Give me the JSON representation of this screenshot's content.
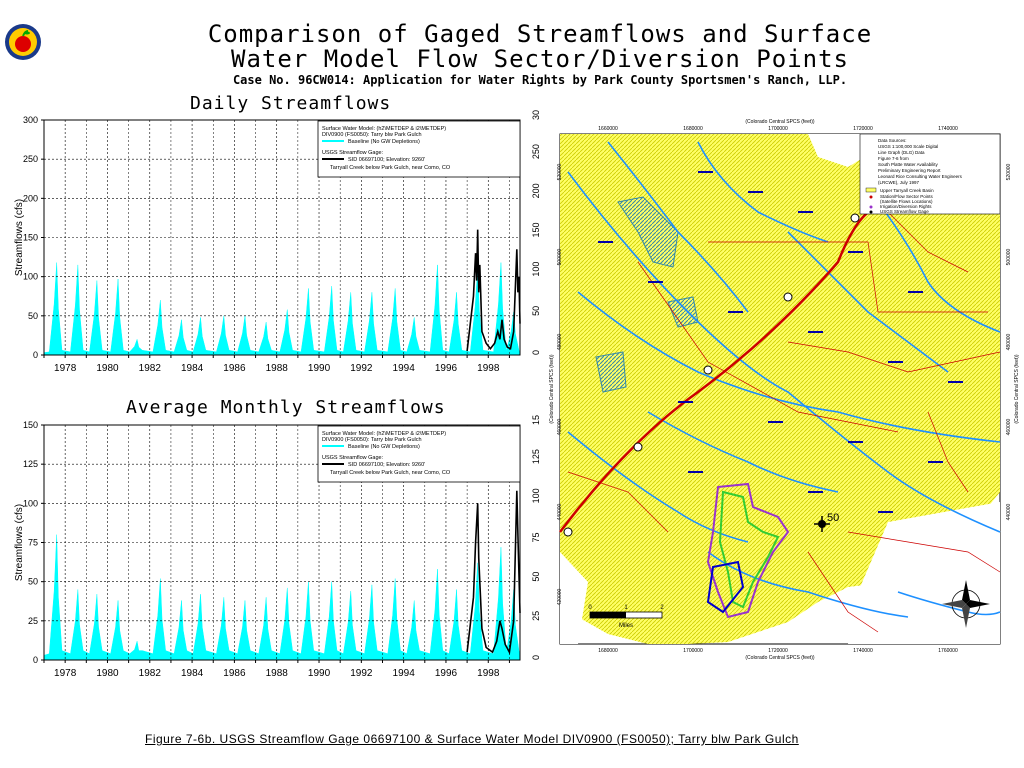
{
  "header": {
    "title_line1": "Comparison of Gaged Streamflows and Surface",
    "title_line2": "Water Model Flow Sector/Diversion Points",
    "subtitle": "Case No. 96CW014: Application for Water Rights by Park County Sportsmen's Ranch, LLP."
  },
  "colors": {
    "model": "#00ffff",
    "gage": "#000000",
    "map_yellow": "#ffff66",
    "river": "#1e90ff",
    "road": "#cc0000"
  },
  "chart_data": [
    {
      "type": "area",
      "title": "Daily Streamflows",
      "ylabel": "Streamflows (cfs)",
      "xlabel": "",
      "ylim": [
        0,
        300
      ],
      "xlim": [
        1977,
        1999.5
      ],
      "yticks": [
        0,
        50,
        100,
        150,
        200,
        250,
        300
      ],
      "xticks": [
        "1978",
        "1980",
        "1982",
        "1984",
        "1986",
        "1988",
        "1990",
        "1992",
        "1994",
        "1996",
        "1998"
      ],
      "grid": true,
      "legend_position": "top-right",
      "legend": {
        "line1": "Surface Water Model: (h2\\METDEP & i2\\METDEP)",
        "line2": "DIV0900 (FS0050): Tarry blw Park Gulch",
        "series1": "Baseline (No GW Depletions)",
        "line3": "USGS Streamflow Gage:",
        "line4": "SID 06697100; Elevation: 9260'",
        "line5": "Tarryall Creek below Park Gulch, near Como, CO"
      },
      "series": [
        {
          "name": "Baseline (No GW Depletions)",
          "style": "area",
          "peaks": [
            [
              1977.6,
              118
            ],
            [
              1978.6,
              115
            ],
            [
              1979.5,
              95
            ],
            [
              1980.5,
              97
            ],
            [
              1981.4,
              20
            ],
            [
              1982.5,
              70
            ],
            [
              1983.5,
              45
            ],
            [
              1984.4,
              48
            ],
            [
              1985.5,
              50
            ],
            [
              1986.5,
              50
            ],
            [
              1987.5,
              42
            ],
            [
              1988.5,
              58
            ],
            [
              1989.5,
              85
            ],
            [
              1990.6,
              88
            ],
            [
              1991.5,
              80
            ],
            [
              1992.5,
              80
            ],
            [
              1993.6,
              85
            ],
            [
              1994.5,
              48
            ],
            [
              1995.6,
              115
            ],
            [
              1996.5,
              80
            ],
            [
              1997.5,
              112
            ],
            [
              1998.6,
              118
            ],
            [
              1999.2,
              55
            ]
          ]
        },
        {
          "name": "USGS Streamflow Gage 06697100",
          "style": "line",
          "points": [
            [
              1997.0,
              5
            ],
            [
              1997.3,
              75
            ],
            [
              1997.4,
              130
            ],
            [
              1997.45,
              95
            ],
            [
              1997.5,
              160
            ],
            [
              1997.55,
              80
            ],
            [
              1997.6,
              115
            ],
            [
              1997.7,
              30
            ],
            [
              1997.9,
              15
            ],
            [
              1998.1,
              8
            ],
            [
              1998.3,
              15
            ],
            [
              1998.45,
              30
            ],
            [
              1998.55,
              20
            ],
            [
              1998.65,
              45
            ],
            [
              1998.75,
              20
            ],
            [
              1998.9,
              10
            ],
            [
              1999.05,
              8
            ],
            [
              1999.2,
              30
            ],
            [
              1999.35,
              135
            ],
            [
              1999.4,
              80
            ],
            [
              1999.45,
              100
            ],
            [
              1999.5,
              40
            ]
          ]
        }
      ]
    },
    {
      "type": "area",
      "title": "Average Monthly Streamflows",
      "ylabel": "Streamflows (cfs)",
      "xlabel": "",
      "ylim": [
        0,
        150
      ],
      "xlim": [
        1977,
        1999.5
      ],
      "yticks": [
        0,
        25,
        50,
        75,
        100,
        125,
        150
      ],
      "xticks": [
        "1978",
        "1980",
        "1982",
        "1984",
        "1986",
        "1988",
        "1990",
        "1992",
        "1994",
        "1996",
        "1998"
      ],
      "grid": true,
      "legend_position": "top-right",
      "legend": {
        "line1": "Surface Water Model: (h2\\METDEP & i2\\METDEP)",
        "line2": "DIV0900 (FS0050): Tarry blw Park Gulch",
        "series1": "Baseline (No GW Depletions)",
        "line3": "USGS Streamflow Gage:",
        "line4": "SID 06697100; Elevation: 9260'",
        "line5": "Tarryall Creek below Park Gulch, near Como, CO"
      },
      "series": [
        {
          "name": "Baseline (No GW Depletions)",
          "style": "area",
          "peaks": [
            [
              1977.6,
              80
            ],
            [
              1978.6,
              45
            ],
            [
              1979.5,
              42
            ],
            [
              1980.5,
              38
            ],
            [
              1981.4,
              12
            ],
            [
              1982.5,
              52
            ],
            [
              1983.5,
              38
            ],
            [
              1984.4,
              42
            ],
            [
              1985.5,
              40
            ],
            [
              1986.5,
              38
            ],
            [
              1987.5,
              40
            ],
            [
              1988.5,
              46
            ],
            [
              1989.5,
              50
            ],
            [
              1990.6,
              50
            ],
            [
              1991.5,
              44
            ],
            [
              1992.5,
              48
            ],
            [
              1993.6,
              52
            ],
            [
              1994.5,
              38
            ],
            [
              1995.6,
              58
            ],
            [
              1996.5,
              45
            ],
            [
              1997.5,
              62
            ],
            [
              1998.6,
              72
            ],
            [
              1999.2,
              45
            ]
          ]
        },
        {
          "name": "USGS Streamflow Gage 06697100",
          "style": "line",
          "points": [
            [
              1997.0,
              5
            ],
            [
              1997.3,
              40
            ],
            [
              1997.4,
              75
            ],
            [
              1997.5,
              100
            ],
            [
              1997.55,
              65
            ],
            [
              1997.7,
              20
            ],
            [
              1997.9,
              8
            ],
            [
              1998.2,
              5
            ],
            [
              1998.4,
              12
            ],
            [
              1998.55,
              25
            ],
            [
              1998.65,
              20
            ],
            [
              1998.8,
              10
            ],
            [
              1999.0,
              5
            ],
            [
              1999.2,
              25
            ],
            [
              1999.35,
              108
            ],
            [
              1999.42,
              70
            ],
            [
              1999.5,
              30
            ]
          ]
        }
      ]
    }
  ],
  "map": {
    "top_coord_label": "(Colorado Central SPCS (feet))",
    "bottom_coord_label": "(Colorado Central SPCS (feet))",
    "left_coord_label": "(Colorado Central SPCS (feet))",
    "right_coord_label": "(Colorado Central SPCS (feet))",
    "top_ticks": [
      "1660000",
      "1680000",
      "1700000",
      "1720000",
      "1740000"
    ],
    "bottom_ticks": [
      "1680000",
      "1700000",
      "1720000",
      "1740000",
      "1760000"
    ],
    "left_ticks": [
      "520000",
      "500000",
      "480000",
      "460000",
      "440000",
      "420000"
    ],
    "right_ticks": [
      "520000",
      "500000",
      "480000",
      "460000",
      "440000"
    ],
    "highway_label": "50",
    "scale_labels": [
      "0",
      "1",
      "2"
    ],
    "scale_unit": "Miles",
    "legend_lines": [
      "Data Sources:",
      "USGS 1:100,000 Scale Digital",
      "Line Graph (DLG) Data",
      "Figure 7-6 from",
      "South Platte Water Availability",
      "Preliminary Engineering Report",
      "Leonard Rice Consulting Water Engineers",
      "(LRCWE), July 1997"
    ],
    "legend_items": [
      "Upper Tarryall Creek Basin",
      "Station/Flow Sector Points",
      "(Satellite Flows Locations)",
      "Irrigation/Diversion Rights",
      "USGS Streamflow Gage"
    ]
  },
  "footer": {
    "caption": "Figure 7-6b. USGS Streamflow Gage 06697100 & Surface Water Model DIV0900 (FS0050); Tarry blw Park Gulch"
  }
}
